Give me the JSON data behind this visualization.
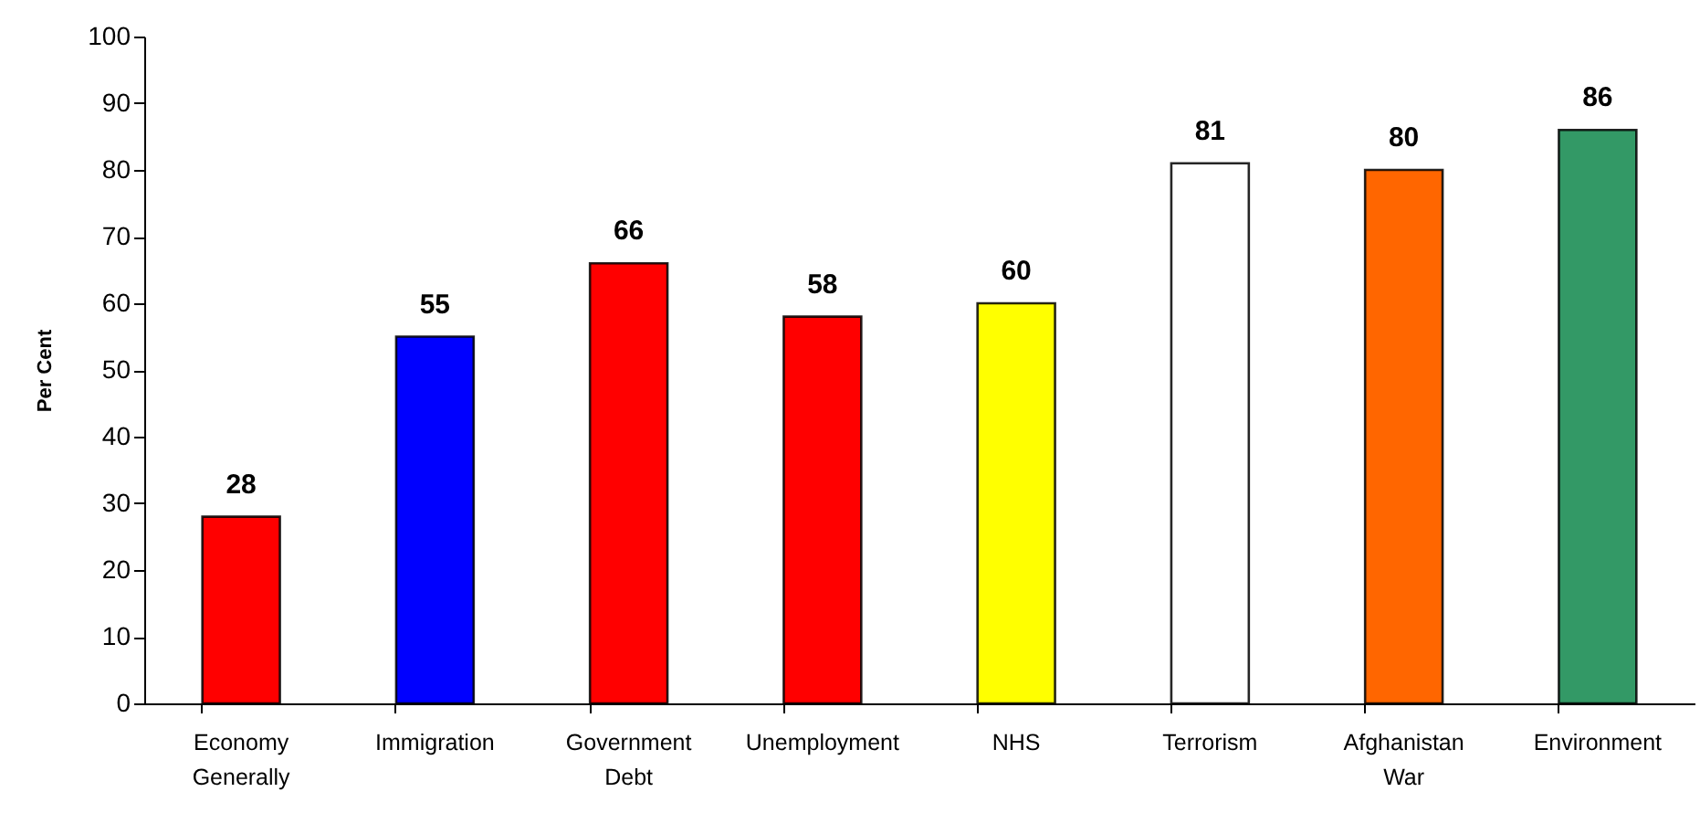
{
  "chart_data": {
    "type": "bar",
    "ylabel": "Per Cent",
    "categories": [
      "Economy Generally",
      "Immigration",
      "Government Debt",
      "Unemployment",
      "NHS",
      "Terrorism",
      "Afghanistan War",
      "Environment"
    ],
    "values": [
      28,
      55,
      66,
      58,
      60,
      81,
      80,
      86
    ],
    "colors": [
      "#ff0000",
      "#0000ff",
      "#ff0000",
      "#ff0000",
      "#ffff00",
      "#ffffff",
      "#ff6600",
      "#339966"
    ],
    "ylim": [
      0,
      100
    ],
    "yticks": [
      0,
      10,
      20,
      30,
      40,
      50,
      60,
      70,
      80,
      90,
      100
    ],
    "grid": false,
    "data_labels": true
  }
}
